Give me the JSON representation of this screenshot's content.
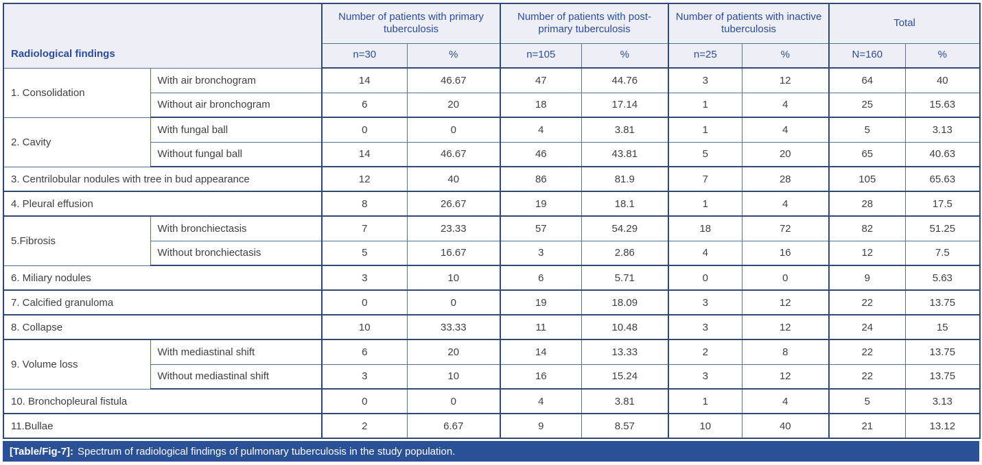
{
  "colors": {
    "border_dark": "#2e4a72",
    "border_thin": "#54719c",
    "header_bg": "#edeef6",
    "header_text": "#2b4c9b",
    "body_text": "#3f3f3f",
    "caption_bg": "#2a5096"
  },
  "table": {
    "findings_header": "Radiological findings",
    "groups": [
      {
        "label": "Number of patients with primary tuberculosis",
        "n": "n=30",
        "pct": "%"
      },
      {
        "label": "Number of patients with post-primary tuberculosis",
        "n": "n=105",
        "pct": "%"
      },
      {
        "label": "Number of patients with inactive tuberculosis",
        "n": "n=25",
        "pct": "%"
      },
      {
        "label": "Total",
        "n": "N=160",
        "pct": "%"
      }
    ],
    "rows": [
      {
        "group": "1. Consolidation",
        "group_rowspan": 2,
        "sub": "With air bronchogram",
        "values": [
          "14",
          "46.67",
          "47",
          "44.76",
          "3",
          "12",
          "64",
          "40"
        ]
      },
      {
        "sub": "Without air bronchogram",
        "values": [
          "6",
          "20",
          "18",
          "17.14",
          "1",
          "4",
          "25",
          "15.63"
        ]
      },
      {
        "group": "2. Cavity",
        "group_rowspan": 2,
        "sub": "With fungal ball",
        "values": [
          "0",
          "0",
          "4",
          "3.81",
          "1",
          "4",
          "5",
          "3.13"
        ]
      },
      {
        "sub": "Without fungal ball",
        "values": [
          "14",
          "46.67",
          "46",
          "43.81",
          "5",
          "20",
          "65",
          "40.63"
        ]
      },
      {
        "finding": "3. Centrilobular nodules with tree in bud appearance",
        "values": [
          "12",
          "40",
          "86",
          "81.9",
          "7",
          "28",
          "105",
          "65.63"
        ]
      },
      {
        "finding": "4. Pleural effusion",
        "values": [
          "8",
          "26.67",
          "19",
          "18.1",
          "1",
          "4",
          "28",
          "17.5"
        ]
      },
      {
        "group": "5.Fibrosis",
        "group_rowspan": 2,
        "sub": "With bronchiectasis",
        "values": [
          "7",
          "23.33",
          "57",
          "54.29",
          "18",
          "72",
          "82",
          "51.25"
        ]
      },
      {
        "sub": "Without bronchiectasis",
        "values": [
          "5",
          "16.67",
          "3",
          "2.86",
          "4",
          "16",
          "12",
          "7.5"
        ]
      },
      {
        "finding": "6. Miliary nodules",
        "values": [
          "3",
          "10",
          "6",
          "5.71",
          "0",
          "0",
          "9",
          "5.63"
        ]
      },
      {
        "finding": "7. Calcified granuloma",
        "values": [
          "0",
          "0",
          "19",
          "18.09",
          "3",
          "12",
          "22",
          "13.75"
        ]
      },
      {
        "finding": "8. Collapse",
        "values": [
          "10",
          "33.33",
          "11",
          "10.48",
          "3",
          "12",
          "24",
          "15"
        ]
      },
      {
        "group": "9. Volume loss",
        "group_rowspan": 2,
        "sub": "With mediastinal shift",
        "values": [
          "6",
          "20",
          "14",
          "13.33",
          "2",
          "8",
          "22",
          "13.75"
        ]
      },
      {
        "sub": "Without mediastinal shift",
        "values": [
          "3",
          "10",
          "16",
          "15.24",
          "3",
          "12",
          "22",
          "13.75"
        ]
      },
      {
        "finding": "10. Bronchopleural fistula",
        "values": [
          "0",
          "0",
          "4",
          "3.81",
          "1",
          "4",
          "5",
          "3.13"
        ]
      },
      {
        "finding": "11.Bullae",
        "values": [
          "2",
          "6.67",
          "9",
          "8.57",
          "10",
          "40",
          "21",
          "13.12"
        ]
      }
    ]
  },
  "caption": {
    "tag": "[Table/Fig-7]:",
    "text": "Spectrum of radiological findings of pulmonary tuberculosis in the study population."
  }
}
